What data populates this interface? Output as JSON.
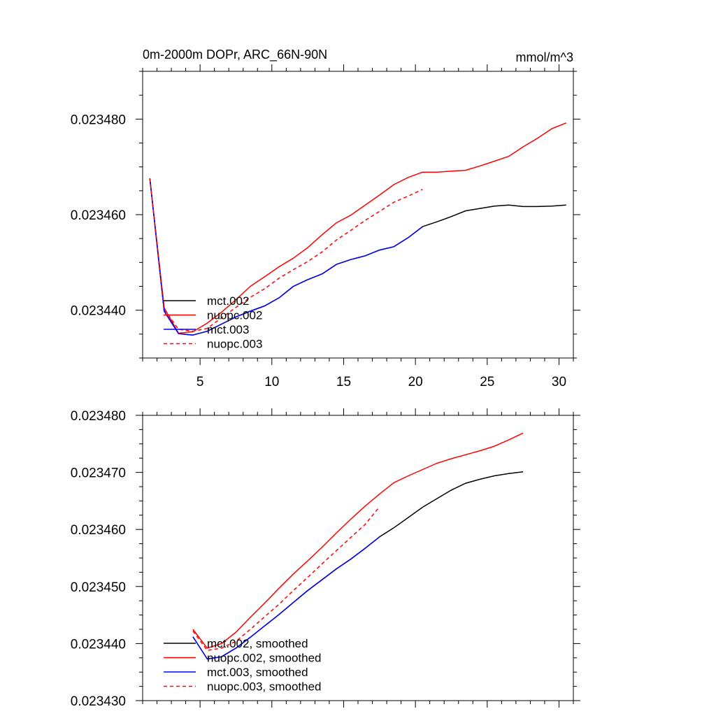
{
  "chart_data": [
    {
      "type": "line",
      "title": "0m-2000m DOPr, ARC_66N-90N",
      "units": "mmol/m^3",
      "xlim": [
        1,
        31
      ],
      "ylim": [
        0.02343,
        0.02349
      ],
      "xticks": [
        5,
        10,
        15,
        20,
        25,
        30
      ],
      "yticks": [
        0.02344,
        0.02346,
        0.02348
      ],
      "ytick_labels": [
        "0.023440",
        "0.023460",
        "0.023480"
      ],
      "legend": "bottom-left",
      "series": [
        {
          "name": "mct.002",
          "color": "#000000",
          "dash": "solid",
          "x": [
            1.5,
            2.5,
            3.5,
            4.5,
            5.5,
            6.5,
            7.5,
            8.5,
            9.5,
            10.5,
            11.5,
            12.5,
            13.5,
            14.5,
            15.5,
            16.5,
            17.5,
            18.5,
            19.5,
            20.5,
            21.5,
            22.5,
            23.5,
            24.5,
            25.5,
            26.5,
            27.5,
            28.5,
            29.5,
            30.5
          ],
          "y": [
            0.0234676,
            0.0234398,
            0.0234351,
            0.0234348,
            0.0234356,
            0.0234371,
            0.0234386,
            0.0234398,
            0.0234409,
            0.0234426,
            0.023445,
            0.0234464,
            0.0234476,
            0.0234496,
            0.0234506,
            0.0234514,
            0.0234526,
            0.0234533,
            0.0234552,
            0.0234575,
            0.0234585,
            0.0234596,
            0.0234608,
            0.0234613,
            0.0234618,
            0.023462,
            0.0234617,
            0.0234617,
            0.0234618,
            0.023462
          ]
        },
        {
          "name": "nuopc.002",
          "color": "#ff0000",
          "dash": "solid",
          "x": [
            1.5,
            2.5,
            3.5,
            4.5,
            5.5,
            6.5,
            7.5,
            8.5,
            9.5,
            10.5,
            11.5,
            12.5,
            13.5,
            14.5,
            15.5,
            16.5,
            17.5,
            18.5,
            19.5,
            20.5,
            21.5,
            22.5,
            23.5,
            24.5,
            25.5,
            26.5,
            27.5,
            28.5,
            29.5,
            30.5
          ],
          "y": [
            0.0234676,
            0.0234405,
            0.0234352,
            0.0234355,
            0.0234373,
            0.0234396,
            0.0234422,
            0.023445,
            0.023447,
            0.0234491,
            0.0234509,
            0.0234531,
            0.0234558,
            0.0234583,
            0.0234599,
            0.023462,
            0.0234641,
            0.0234663,
            0.0234678,
            0.0234689,
            0.0234689,
            0.0234691,
            0.0234693,
            0.0234702,
            0.0234712,
            0.0234722,
            0.0234742,
            0.023476,
            0.023478,
            0.0234792
          ]
        },
        {
          "name": "mct.003",
          "color": "#0000ff",
          "dash": "solid",
          "x": [
            1.5,
            2.5,
            3.5,
            4.5,
            5.5,
            6.5,
            7.5,
            8.5,
            9.5,
            10.5,
            11.5,
            12.5,
            13.5,
            14.5,
            15.5,
            16.5,
            17.5,
            18.5,
            19.5,
            20.5
          ],
          "y": [
            0.0234676,
            0.0234398,
            0.0234351,
            0.0234348,
            0.0234356,
            0.0234371,
            0.0234386,
            0.0234398,
            0.0234409,
            0.0234426,
            0.023445,
            0.0234464,
            0.0234476,
            0.0234496,
            0.0234506,
            0.0234514,
            0.0234526,
            0.0234533,
            0.0234552,
            0.0234575
          ]
        },
        {
          "name": "nuopc.003",
          "color": "#ff0000",
          "dash": "dashed",
          "x": [
            1.5,
            2.5,
            3.5,
            4.5,
            5.5,
            6.5,
            7.5,
            8.5,
            9.5,
            10.5,
            11.5,
            12.5,
            13.5,
            14.5,
            15.5,
            16.5,
            17.5,
            18.5,
            19.5,
            20.5
          ],
          "y": [
            0.0234676,
            0.0234402,
            0.023436,
            0.0234356,
            0.0234362,
            0.0234384,
            0.0234406,
            0.0234427,
            0.0234445,
            0.0234467,
            0.0234485,
            0.0234502,
            0.0234522,
            0.0234547,
            0.0234567,
            0.0234588,
            0.0234607,
            0.0234626,
            0.0234639,
            0.0234653
          ]
        }
      ]
    },
    {
      "type": "line",
      "xlim": [
        1,
        31
      ],
      "ylim": [
        0.02343,
        0.02348
      ],
      "xticks": [
        5,
        10,
        15,
        20,
        25,
        30
      ],
      "yticks": [
        0.02343,
        0.02344,
        0.02345,
        0.02346,
        0.02347,
        0.02348
      ],
      "ytick_labels": [
        "0.023430",
        "0.023440",
        "0.023450",
        "0.023460",
        "0.023470",
        "0.023480"
      ],
      "legend": "bottom-left",
      "series": [
        {
          "name": "mct.002, smoothed",
          "color": "#000000",
          "dash": "solid",
          "x": [
            4.5,
            5.5,
            6.5,
            7.5,
            8.5,
            9.5,
            10.5,
            11.5,
            12.5,
            13.5,
            14.5,
            15.5,
            16.5,
            17.5,
            18.5,
            19.5,
            20.5,
            21.5,
            22.5,
            23.5,
            24.5,
            25.5,
            26.5,
            27.5
          ],
          "y": [
            0.0234412,
            0.0234373,
            0.0234377,
            0.0234392,
            0.0234411,
            0.0234431,
            0.0234451,
            0.0234472,
            0.0234493,
            0.0234512,
            0.0234531,
            0.0234548,
            0.0234567,
            0.0234587,
            0.0234603,
            0.0234621,
            0.0234639,
            0.0234654,
            0.0234669,
            0.0234681,
            0.0234688,
            0.0234694,
            0.0234698,
            0.0234701
          ]
        },
        {
          "name": "nuopc.002, smoothed",
          "color": "#ff0000",
          "dash": "solid",
          "x": [
            4.5,
            5.5,
            6.5,
            7.5,
            8.5,
            9.5,
            10.5,
            11.5,
            12.5,
            13.5,
            14.5,
            15.5,
            16.5,
            17.5,
            18.5,
            19.5,
            20.5,
            21.5,
            22.5,
            23.5,
            24.5,
            25.5,
            26.5,
            27.5
          ],
          "y": [
            0.0234425,
            0.0234392,
            0.02344,
            0.023442,
            0.0234446,
            0.0234471,
            0.0234497,
            0.0234522,
            0.0234545,
            0.0234569,
            0.0234594,
            0.0234618,
            0.0234641,
            0.0234662,
            0.0234682,
            0.0234694,
            0.0234705,
            0.0234716,
            0.0234724,
            0.0234731,
            0.0234738,
            0.0234746,
            0.0234757,
            0.0234769
          ]
        },
        {
          "name": "mct.003, smoothed",
          "color": "#0000ff",
          "dash": "solid",
          "x": [
            4.5,
            5.5,
            6.5,
            7.5,
            8.5,
            9.5,
            10.5,
            11.5,
            12.5,
            13.5,
            14.5,
            15.5,
            16.5,
            17.5
          ],
          "y": [
            0.0234412,
            0.0234373,
            0.0234377,
            0.0234392,
            0.0234411,
            0.0234431,
            0.0234451,
            0.0234472,
            0.0234493,
            0.0234512,
            0.0234531,
            0.0234548,
            0.0234567,
            0.0234587
          ]
        },
        {
          "name": "nuopc.003, smoothed",
          "color": "#ff0000",
          "dash": "dashed",
          "x": [
            4.5,
            5.5,
            6.5,
            7.5,
            8.5,
            9.5,
            10.5,
            11.5,
            12.5,
            13.5,
            14.5,
            15.5,
            16.5,
            17.5
          ],
          "y": [
            0.0234422,
            0.0234388,
            0.0234392,
            0.0234404,
            0.0234425,
            0.0234447,
            0.0234469,
            0.0234493,
            0.0234516,
            0.023454,
            0.0234563,
            0.0234586,
            0.0234609,
            0.023464
          ]
        }
      ]
    }
  ]
}
